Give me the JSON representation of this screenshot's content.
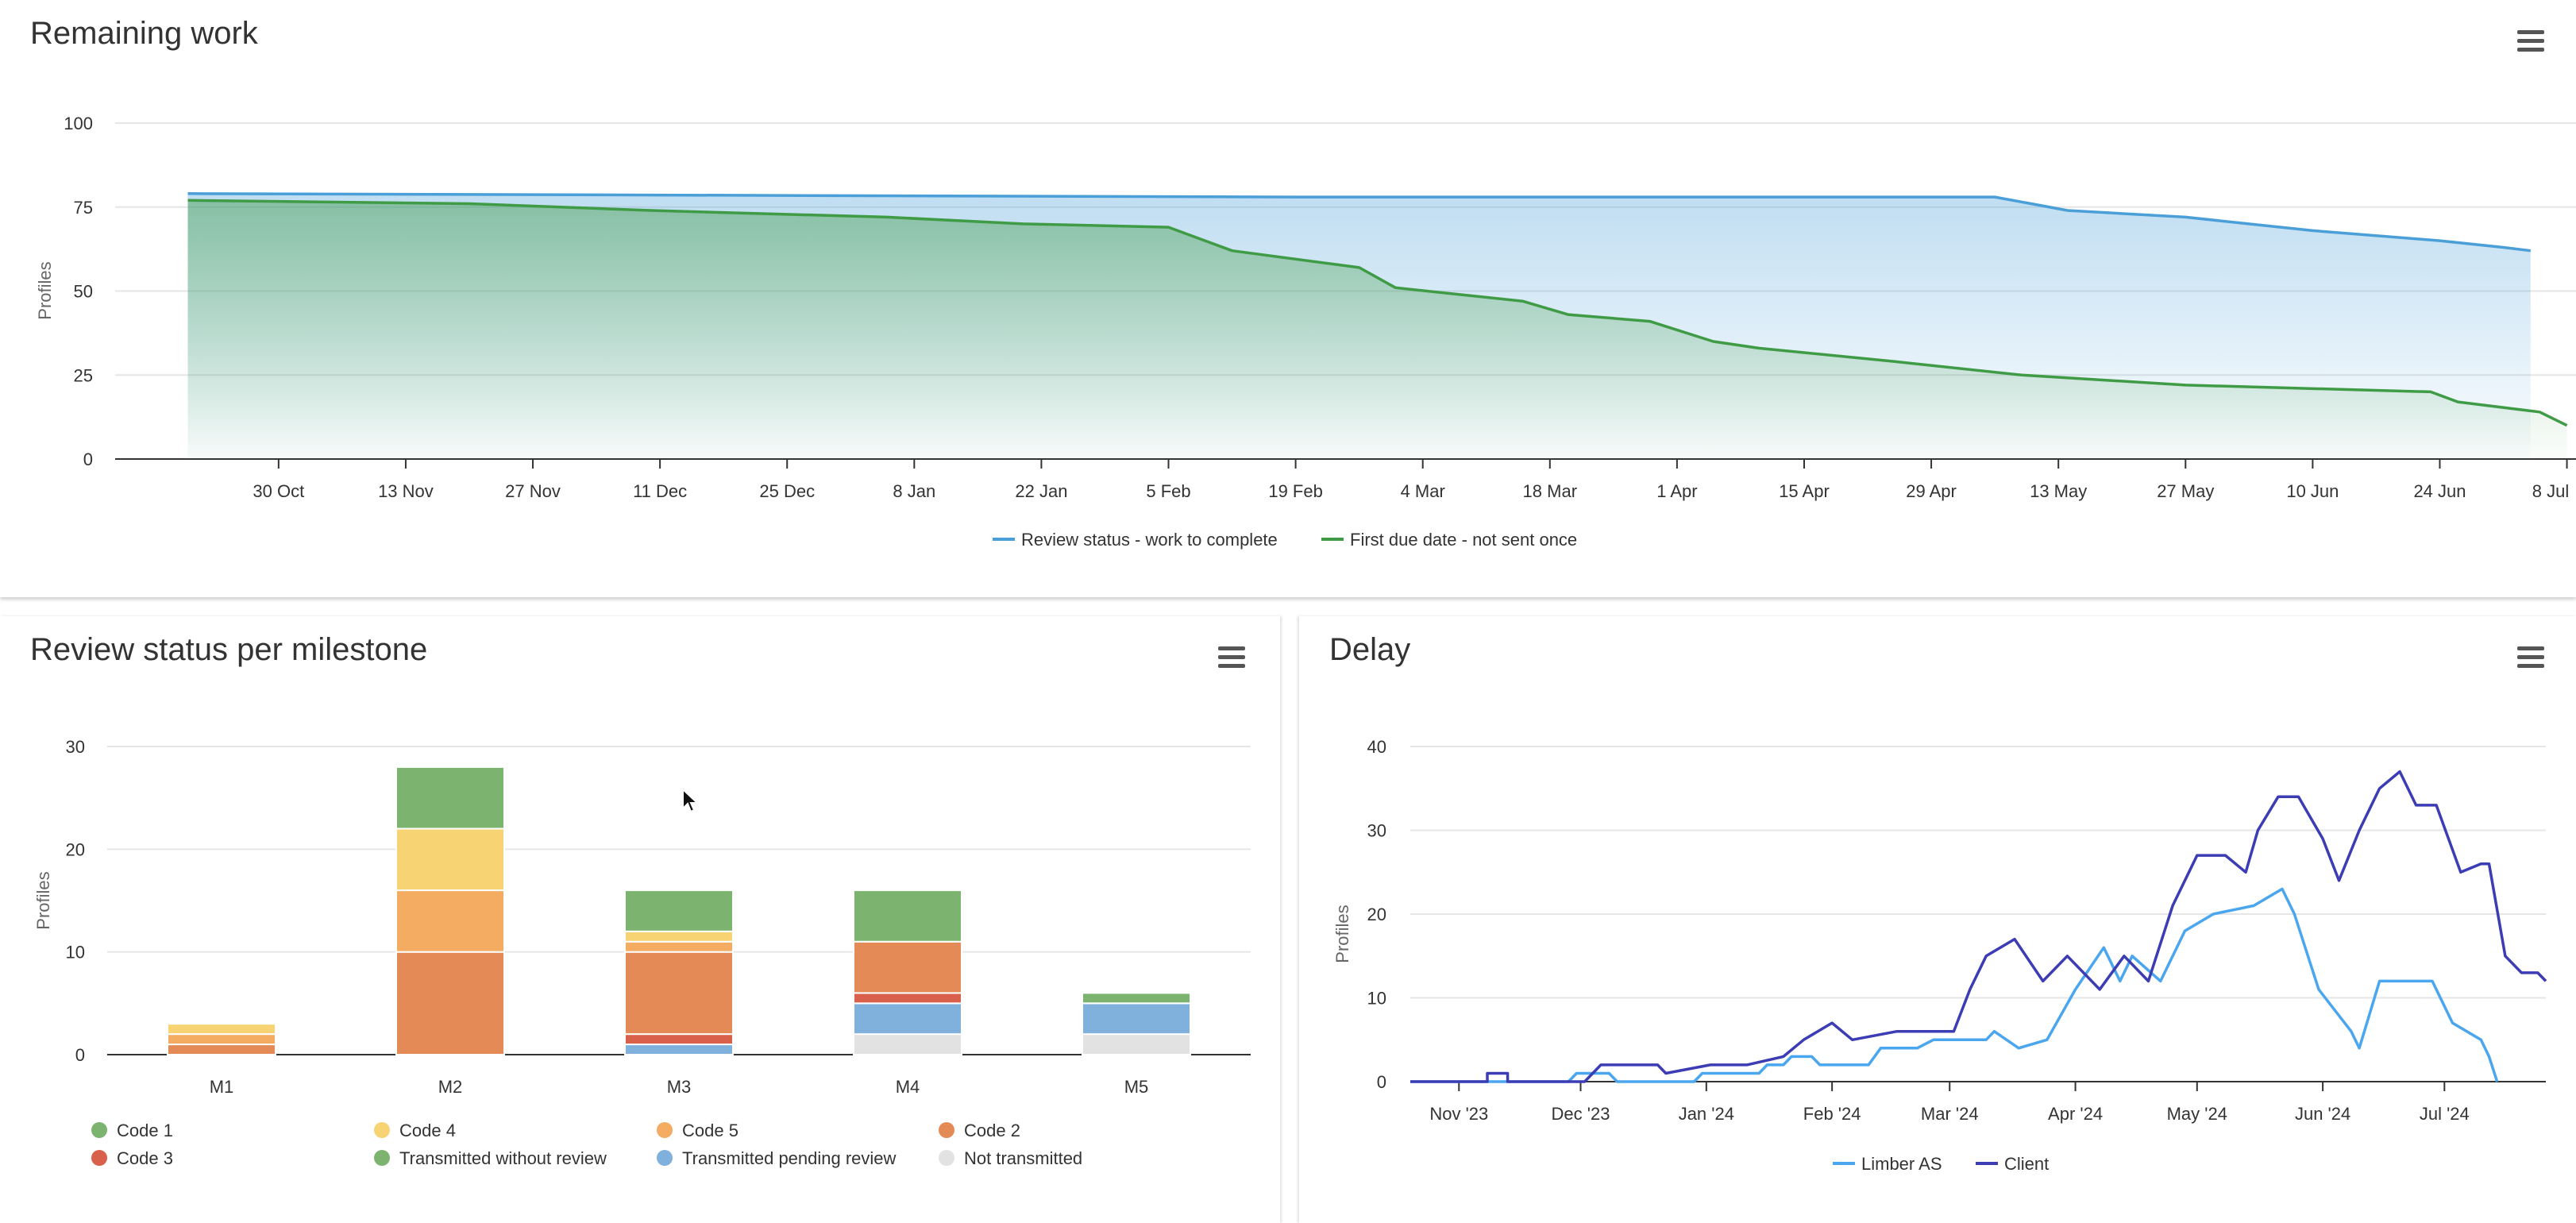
{
  "colors": {
    "code1": "#7cb36f",
    "code4": "#f7d373",
    "code5": "#f4ac62",
    "code2": "#e48a56",
    "code3": "#d9604a",
    "transmitted_without_review": "#7cb36f",
    "transmitted_pending_review": "#80b1dd",
    "not_transmitted": "#e2e2e2",
    "review_status": "#4a9fd8",
    "first_due": "#3f9b45",
    "limber": "#4aa6ef",
    "client": "#3c3cb4"
  },
  "icons": {
    "menu": "hamburger-menu-icon",
    "cursor": "mouse-pointer-icon"
  },
  "remaining_work": {
    "title": "Remaining work",
    "chart_data": {
      "type": "area",
      "title": "Remaining work",
      "ylabel": "Profiles",
      "ylim": [
        0,
        100
      ],
      "yticks": [
        "0",
        "25",
        "50",
        "75",
        "100"
      ],
      "xticks": [
        "30 Oct",
        "13 Nov",
        "27 Nov",
        "11 Dec",
        "25 Dec",
        "8 Jan",
        "22 Jan",
        "5 Feb",
        "19 Feb",
        "4 Mar",
        "18 Mar",
        "1 Apr",
        "15 Apr",
        "29 Apr",
        "13 May",
        "27 May",
        "10 Jun",
        "24 Jun",
        "8 Jul"
      ],
      "grid": true,
      "legend_position": "bottom-center",
      "series": [
        {
          "name": "Review status - work to complete",
          "points": [
            [
              "2023-10-20",
              79
            ],
            [
              "2024-02-19",
              78
            ],
            [
              "2024-05-06",
              78
            ],
            [
              "2024-05-10",
              76
            ],
            [
              "2024-05-14",
              74
            ],
            [
              "2024-05-27",
              72
            ],
            [
              "2024-06-10",
              68
            ],
            [
              "2024-06-24",
              65
            ],
            [
              "2024-07-01",
              63
            ],
            [
              "2024-07-04",
              62
            ]
          ]
        },
        {
          "name": "First due date - not sent once",
          "points": [
            [
              "2023-10-20",
              77
            ],
            [
              "2023-11-20",
              76
            ],
            [
              "2023-12-10",
              74
            ],
            [
              "2024-01-05",
              72
            ],
            [
              "2024-01-20",
              70
            ],
            [
              "2024-02-05",
              69
            ],
            [
              "2024-02-12",
              62
            ],
            [
              "2024-02-26",
              57
            ],
            [
              "2024-03-01",
              51
            ],
            [
              "2024-03-15",
              47
            ],
            [
              "2024-03-20",
              43
            ],
            [
              "2024-03-29",
              41
            ],
            [
              "2024-04-05",
              35
            ],
            [
              "2024-04-10",
              33
            ],
            [
              "2024-04-25",
              29
            ],
            [
              "2024-05-09",
              25
            ],
            [
              "2024-05-27",
              22
            ],
            [
              "2024-06-23",
              20
            ],
            [
              "2024-06-26",
              17
            ],
            [
              "2024-07-05",
              14
            ],
            [
              "2024-07-08",
              10
            ]
          ]
        }
      ]
    }
  },
  "review_status": {
    "title": "Review status per milestone",
    "chart_data": {
      "type": "bar",
      "stacked": true,
      "title": "Review status per milestone",
      "ylabel": "Profiles",
      "ylim": [
        0,
        30
      ],
      "yticks": [
        "0",
        "10",
        "20",
        "30"
      ],
      "categories": [
        "M1",
        "M2",
        "M3",
        "M4",
        "M5"
      ],
      "legend_position": "bottom",
      "series": [
        {
          "name": "Not transmitted",
          "color_key": "not_transmitted",
          "values": [
            0,
            0,
            0,
            2,
            2
          ]
        },
        {
          "name": "Transmitted pending review",
          "color_key": "transmitted_pending_review",
          "values": [
            0,
            0,
            1,
            3,
            3
          ]
        },
        {
          "name": "Code 3",
          "color_key": "code3",
          "values": [
            0,
            0,
            1,
            1,
            0
          ]
        },
        {
          "name": "Code 2",
          "color_key": "code2",
          "values": [
            1,
            10,
            8,
            5,
            0
          ]
        },
        {
          "name": "Code 5",
          "color_key": "code5",
          "values": [
            1,
            6,
            1,
            0,
            0
          ]
        },
        {
          "name": "Code 4",
          "color_key": "code4",
          "values": [
            1,
            6,
            1,
            0,
            0
          ]
        },
        {
          "name": "Code 1",
          "color_key": "code1",
          "values": [
            0,
            0,
            0,
            0,
            0
          ]
        },
        {
          "name": "Transmitted without review",
          "color_key": "transmitted_without_review",
          "values": [
            0,
            6,
            4,
            5,
            1
          ]
        }
      ],
      "legend": [
        {
          "label": "Code 1",
          "color_key": "code1"
        },
        {
          "label": "Code 4",
          "color_key": "code4"
        },
        {
          "label": "Code 5",
          "color_key": "code5"
        },
        {
          "label": "Code 2",
          "color_key": "code2"
        },
        {
          "label": "Code 3",
          "color_key": "code3"
        },
        {
          "label": "Transmitted without review",
          "color_key": "transmitted_without_review"
        },
        {
          "label": "Transmitted pending review",
          "color_key": "transmitted_pending_review"
        },
        {
          "label": "Not transmitted",
          "color_key": "not_transmitted"
        }
      ]
    }
  },
  "delay": {
    "title": "Delay",
    "chart_data": {
      "type": "line",
      "title": "Delay",
      "ylabel": "Profiles",
      "ylim": [
        0,
        40
      ],
      "yticks": [
        "0",
        "10",
        "20",
        "30",
        "40"
      ],
      "xticks": [
        "Nov '23",
        "Dec '23",
        "Jan '24",
        "Feb '24",
        "Mar '24",
        "Apr '24",
        "May '24",
        "Jun '24",
        "Jul '24"
      ],
      "legend_position": "bottom-center",
      "series": [
        {
          "name": "Limber AS",
          "points": [
            [
              "2023-10-20",
              0
            ],
            [
              "2023-11-28",
              0
            ],
            [
              "2023-11-30",
              1
            ],
            [
              "2023-12-08",
              1
            ],
            [
              "2023-12-10",
              0
            ],
            [
              "2023-12-29",
              0
            ],
            [
              "2023-12-31",
              1
            ],
            [
              "2024-01-14",
              1
            ],
            [
              "2024-01-16",
              2
            ],
            [
              "2024-01-20",
              2
            ],
            [
              "2024-01-22",
              3
            ],
            [
              "2024-01-27",
              3
            ],
            [
              "2024-01-29",
              2
            ],
            [
              "2024-02-10",
              2
            ],
            [
              "2024-02-13",
              4
            ],
            [
              "2024-02-22",
              4
            ],
            [
              "2024-02-26",
              5
            ],
            [
              "2024-03-05",
              5
            ],
            [
              "2024-03-10",
              5
            ],
            [
              "2024-03-12",
              6
            ],
            [
              "2024-03-18",
              4
            ],
            [
              "2024-03-25",
              5
            ],
            [
              "2024-04-01",
              11
            ],
            [
              "2024-04-08",
              16
            ],
            [
              "2024-04-12",
              12
            ],
            [
              "2024-04-15",
              15
            ],
            [
              "2024-04-22",
              12
            ],
            [
              "2024-04-28",
              18
            ],
            [
              "2024-05-05",
              20
            ],
            [
              "2024-05-15",
              21
            ],
            [
              "2024-05-22",
              23
            ],
            [
              "2024-05-25",
              20
            ],
            [
              "2024-05-31",
              11
            ],
            [
              "2024-06-08",
              6
            ],
            [
              "2024-06-10",
              4
            ],
            [
              "2024-06-15",
              12
            ],
            [
              "2024-06-28",
              12
            ],
            [
              "2024-07-03",
              7
            ],
            [
              "2024-07-10",
              5
            ],
            [
              "2024-07-12",
              3
            ],
            [
              "2024-07-14",
              0
            ]
          ]
        },
        {
          "name": "Client",
          "points": [
            [
              "2023-10-20",
              0
            ],
            [
              "2023-11-08",
              0
            ],
            [
              "2023-11-08",
              1
            ],
            [
              "2023-11-13",
              1
            ],
            [
              "2023-11-13",
              0
            ],
            [
              "2023-12-02",
              0
            ],
            [
              "2023-12-06",
              2
            ],
            [
              "2023-12-20",
              2
            ],
            [
              "2023-12-22",
              1
            ],
            [
              "2024-01-02",
              2
            ],
            [
              "2024-01-11",
              2
            ],
            [
              "2024-01-20",
              3
            ],
            [
              "2024-01-25",
              5
            ],
            [
              "2024-02-01",
              7
            ],
            [
              "2024-02-06",
              5
            ],
            [
              "2024-02-17",
              6
            ],
            [
              "2024-02-25",
              6
            ],
            [
              "2024-03-02",
              6
            ],
            [
              "2024-03-06",
              11
            ],
            [
              "2024-03-10",
              15
            ],
            [
              "2024-03-17",
              17
            ],
            [
              "2024-03-24",
              12
            ],
            [
              "2024-03-30",
              15
            ],
            [
              "2024-04-07",
              11
            ],
            [
              "2024-04-13",
              15
            ],
            [
              "2024-04-19",
              12
            ],
            [
              "2024-04-25",
              21
            ],
            [
              "2024-05-01",
              27
            ],
            [
              "2024-05-08",
              27
            ],
            [
              "2024-05-13",
              25
            ],
            [
              "2024-05-16",
              30
            ],
            [
              "2024-05-21",
              34
            ],
            [
              "2024-05-26",
              34
            ],
            [
              "2024-06-01",
              29
            ],
            [
              "2024-06-05",
              24
            ],
            [
              "2024-06-10",
              30
            ],
            [
              "2024-06-15",
              35
            ],
            [
              "2024-06-20",
              37
            ],
            [
              "2024-06-24",
              33
            ],
            [
              "2024-06-29",
              33
            ],
            [
              "2024-07-05",
              25
            ],
            [
              "2024-07-10",
              26
            ],
            [
              "2024-07-12",
              26
            ],
            [
              "2024-07-16",
              15
            ],
            [
              "2024-07-20",
              13
            ],
            [
              "2024-07-24",
              13
            ],
            [
              "2024-07-26",
              12
            ]
          ]
        }
      ]
    }
  }
}
